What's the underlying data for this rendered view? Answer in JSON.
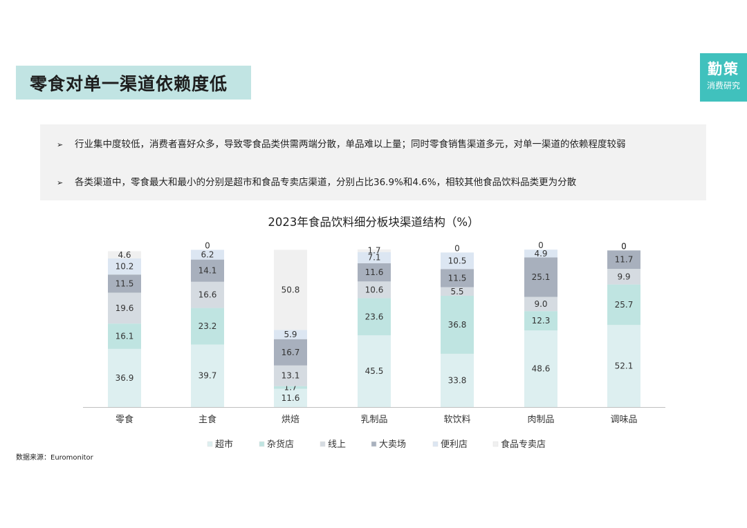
{
  "header": {
    "title": "零食对单一渠道依赖度低"
  },
  "brand": {
    "name": "勤策",
    "subtitle": "消费研究"
  },
  "bullets": [
    "行业集中度较低，消费者喜好众多，导致零食品类供需两端分散，单品难以上量；同时零食销售渠道多元，对单一渠道的依赖程度较弱",
    "各类渠道中，零食最大和最小的分别是超市和食品专卖店渠道，分别占比36.9%和4.6%，相较其他食品饮料品类更为分散"
  ],
  "source": "数据来源：Euromonitor",
  "chart_data": {
    "type": "bar",
    "stacked": true,
    "title": "2023年食品饮料细分板块渠道结构（%）",
    "categories": [
      "零食",
      "主食",
      "烘焙",
      "乳制品",
      "软饮料",
      "肉制品",
      "调味品"
    ],
    "series": [
      {
        "name": "超市",
        "color": "#ddeff0",
        "values": [
          36.9,
          39.7,
          11.6,
          45.5,
          33.8,
          48.6,
          52.1
        ]
      },
      {
        "name": "杂货店",
        "color": "#bfe4e1",
        "values": [
          16.1,
          23.2,
          1.7,
          23.6,
          36.8,
          12.3,
          25.7
        ]
      },
      {
        "name": "线上",
        "color": "#d5dbe1",
        "values": [
          19.6,
          16.6,
          13.1,
          10.6,
          5.5,
          9.0,
          9.9
        ]
      },
      {
        "name": "大卖场",
        "color": "#a8b0bd",
        "values": [
          11.5,
          14.1,
          16.7,
          11.6,
          11.5,
          25.1,
          11.7
        ]
      },
      {
        "name": "便利店",
        "color": "#dce6f2",
        "values": [
          10.2,
          6.2,
          5.9,
          7.1,
          10.5,
          4.9,
          0
        ]
      },
      {
        "name": "食品专卖店",
        "color": "#f0f0f0",
        "values": [
          4.6,
          0,
          50.8,
          1.7,
          0,
          0,
          0
        ]
      }
    ],
    "ylim": [
      0,
      100
    ],
    "legend": "bottom",
    "grid": false
  }
}
